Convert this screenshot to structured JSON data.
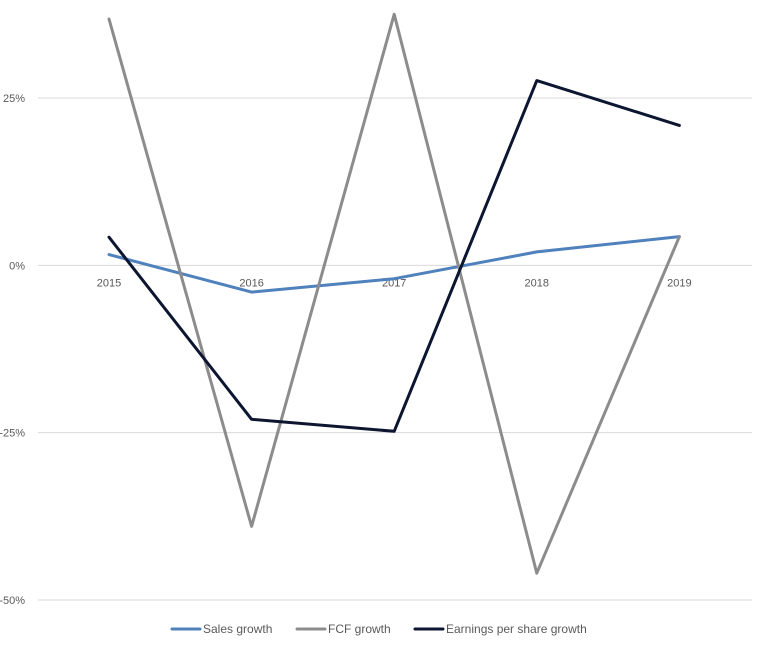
{
  "chart_data": {
    "type": "line",
    "title": "",
    "xlabel": "",
    "ylabel": "",
    "categories": [
      "2015",
      "2016",
      "2017",
      "2018",
      "2019"
    ],
    "ylim": [
      -50,
      25
    ],
    "yticks": [
      {
        "value": 25,
        "label": "25%"
      },
      {
        "value": 0,
        "label": "0%"
      },
      {
        "value": -25,
        "label": "-25%"
      },
      {
        "value": -50,
        "label": "-50%"
      }
    ],
    "grid": true,
    "legend": "bottom",
    "series": [
      {
        "name": "Sales growth",
        "color": "#4f81bd",
        "values": [
          1.6,
          -4.0,
          -2.0,
          2.0,
          4.3
        ]
      },
      {
        "name": "FCF growth",
        "color": "#8c8c8c",
        "values": [
          36.8,
          -39.0,
          37.5,
          -46.0,
          4.3
        ]
      },
      {
        "name": "Earnings per share growth",
        "color": "#0d1630",
        "values": [
          4.2,
          -23.0,
          -24.8,
          27.6,
          20.9
        ]
      }
    ]
  }
}
